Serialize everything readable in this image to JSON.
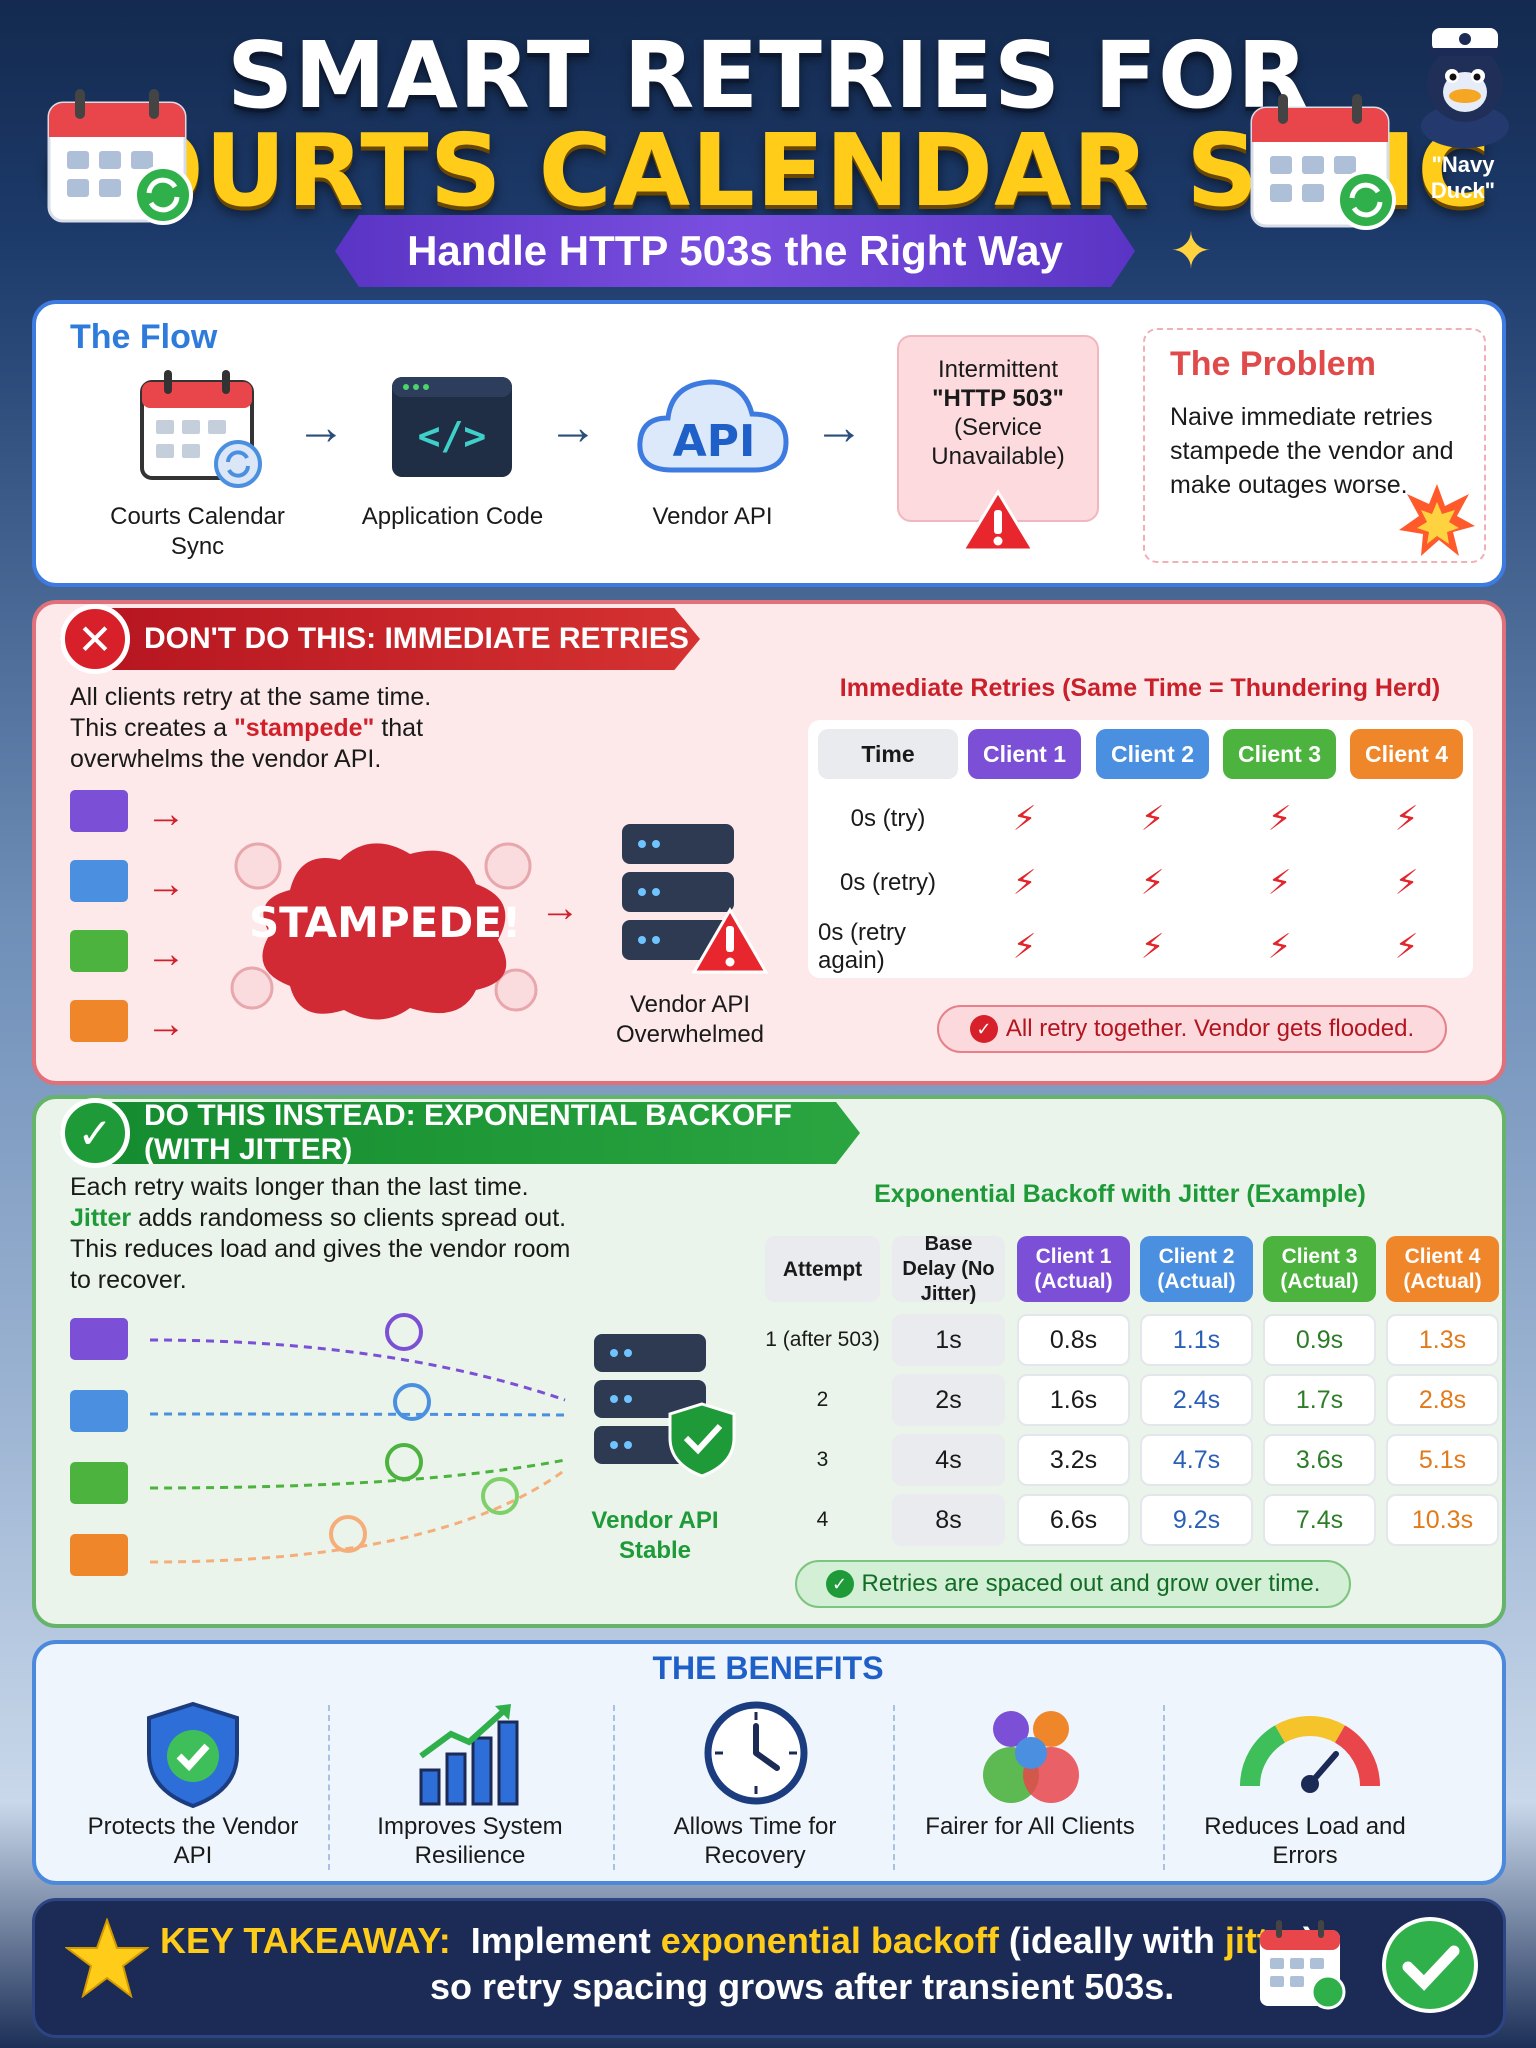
{
  "header": {
    "title_line1": "SMART RETRIES FOR",
    "title_line2": "COURTS CALENDAR SYNC",
    "subtitle": "Handle HTTP 503s the Right Way",
    "mascot_label": "\"Navy Duck\""
  },
  "flow": {
    "heading": "The Flow",
    "steps": [
      {
        "label": "Courts Calendar Sync",
        "icon": "calendar-sync-icon"
      },
      {
        "label": "Application Code",
        "icon": "code-window-icon"
      },
      {
        "label": "Vendor API",
        "icon": "cloud-api-icon",
        "icon_text": "API"
      }
    ],
    "error_lines": [
      "Intermittent",
      "\"HTTP 503\"",
      "(Service",
      "Unavailable)"
    ],
    "problem_title": "The Problem",
    "problem_text": "Naive immediate retries stampede the vendor and make outages worse."
  },
  "dont": {
    "banner": "DON'T DO THIS: IMMEDIATE RETRIES",
    "text_line1": "All clients retry at the same time.",
    "text_line2_pre": "This creates a ",
    "text_line2_em": "\"stampede\"",
    "text_line2_post": " that",
    "text_line3": "overwhelms the vendor API.",
    "stampede_label": "STAMPEDE!",
    "server_label": "Vendor API Overwhelmed",
    "table_title": "Immediate Retries (Same Time = Thundering Herd)",
    "table_headers": [
      "Time",
      "Client 1",
      "Client 2",
      "Client 3",
      "Client 4"
    ],
    "table_rows": [
      "0s (try)",
      "0s (retry)",
      "0s (retry again)"
    ],
    "bolt_glyph": "⚡",
    "note": "All retry together. Vendor gets flooded."
  },
  "do": {
    "banner": "DO THIS INSTEAD: EXPONENTIAL BACKOFF (WITH JITTER)",
    "text_line1": "Each retry waits longer than the last time.",
    "text_line2_em": "Jitter",
    "text_line2_post": " adds randomess so clients spread out.",
    "text_line3": "This reduces load and gives the vendor room",
    "text_line4": "to recover.",
    "server_label": "Vendor API Stable",
    "table_title": "Exponential Backoff with Jitter (Example)",
    "table_headers": [
      "Attempt",
      "Base Delay (No Jitter)",
      "Client 1 (Actual)",
      "Client 2 (Actual)",
      "Client 3 (Actual)",
      "Client 4 (Actual)"
    ],
    "table_rows": [
      [
        "1 (after 503)",
        "1s",
        "0.8s",
        "1.1s",
        "0.9s",
        "1.3s"
      ],
      [
        "2",
        "2s",
        "1.6s",
        "2.4s",
        "1.7s",
        "2.8s"
      ],
      [
        "3",
        "4s",
        "3.2s",
        "4.7s",
        "3.6s",
        "5.1s"
      ],
      [
        "4",
        "8s",
        "6.6s",
        "9.2s",
        "7.4s",
        "10.3s"
      ]
    ],
    "note": "Retries are spaced out and grow over time."
  },
  "benefits": {
    "title": "THE BENEFITS",
    "items": [
      {
        "label": "Protects the Vendor API",
        "icon": "shield-check-icon"
      },
      {
        "label": "Improves System Resilience",
        "icon": "growth-chart-icon"
      },
      {
        "label": "Allows Time for Recovery",
        "icon": "clock-icon"
      },
      {
        "label": "Fairer for All Clients",
        "icon": "people-icon"
      },
      {
        "label": "Reduces Load and Errors",
        "icon": "gauge-icon"
      }
    ]
  },
  "takeaway": {
    "label": "KEY TAKEAWAY:",
    "pre": "Implement ",
    "em1": "exponential backoff",
    "mid": " (ideally with ",
    "em2": "jitter",
    "post": ")",
    "line2": "so retry spacing grows after transient 503s."
  },
  "colors": {
    "client1": "#7b4fd6",
    "client2": "#4a8fe0",
    "client3": "#4cb33e",
    "client4": "#f0862a",
    "accent_yellow": "#ffcc1a",
    "danger": "#d0202a",
    "success": "#1e9a38"
  }
}
